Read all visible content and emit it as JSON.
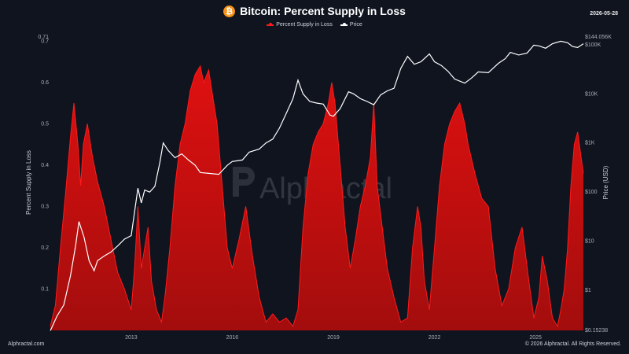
{
  "header": {
    "title": "Bitcoin: Percent Supply in Loss",
    "date": "2026-05-28",
    "btc_symbol": "₿"
  },
  "legend": [
    {
      "label": "Percent Supply in Loss",
      "color": "#ff1a1a"
    },
    {
      "label": "Price",
      "color": "#ffffff"
    }
  ],
  "watermark": "Alphractal",
  "footer": {
    "left": "Alphractal.com",
    "right": "© 2026 Alphractal. All Rights Reserved."
  },
  "chart_data": {
    "type": "area",
    "ylabel": "Percent Supply in Loss",
    "y2label": "Price (USD)",
    "ylim": [
      0,
      0.71
    ],
    "y_ticks": [
      "0.1",
      "0.2",
      "0.3",
      "0.4",
      "0.5",
      "0.6",
      "0.7",
      "0.71"
    ],
    "y_tick_values": [
      0.1,
      0.2,
      0.3,
      0.4,
      0.5,
      0.6,
      0.7,
      0.71
    ],
    "y2_scale": "log",
    "y2lim": [
      0.15238,
      144056
    ],
    "y2_ticks": [
      "$0.15238",
      "$1",
      "$10",
      "$100",
      "$1K",
      "$10K",
      "$100K",
      "$144.056K"
    ],
    "y2_tick_values": [
      0.15238,
      1,
      10,
      100,
      1000,
      10000,
      100000,
      144056
    ],
    "x_ticks": [
      "2013",
      "2016",
      "2019",
      "2022",
      "2025"
    ],
    "x_tick_values": [
      2013,
      2016,
      2019,
      2022,
      2025
    ],
    "xlim": [
      2010.6,
      2026.42
    ],
    "series": [
      {
        "name": "Percent Supply in Loss",
        "color": "#ff1a1a",
        "x": [
          2010.6,
          2010.75,
          2010.9,
          2011.05,
          2011.2,
          2011.3,
          2011.42,
          2011.5,
          2011.58,
          2011.7,
          2011.85,
          2012.0,
          2012.2,
          2012.4,
          2012.6,
          2012.8,
          2013.0,
          2013.1,
          2013.2,
          2013.3,
          2013.4,
          2013.5,
          2013.6,
          2013.75,
          2013.9,
          2014.0,
          2014.15,
          2014.3,
          2014.45,
          2014.6,
          2014.75,
          2014.9,
          2015.05,
          2015.15,
          2015.3,
          2015.45,
          2015.55,
          2015.7,
          2015.85,
          2016.0,
          2016.2,
          2016.4,
          2016.6,
          2016.8,
          2017.0,
          2017.2,
          2017.4,
          2017.6,
          2017.8,
          2017.95,
          2018.1,
          2018.25,
          2018.4,
          2018.55,
          2018.7,
          2018.85,
          2018.95,
          2019.05,
          2019.2,
          2019.35,
          2019.5,
          2019.65,
          2019.8,
          2019.95,
          2020.1,
          2020.2,
          2020.3,
          2020.45,
          2020.6,
          2020.8,
          2021.0,
          2021.2,
          2021.35,
          2021.5,
          2021.6,
          2021.7,
          2021.85,
          2022.0,
          2022.15,
          2022.3,
          2022.45,
          2022.6,
          2022.75,
          2022.9,
          2023.0,
          2023.2,
          2023.4,
          2023.6,
          2023.8,
          2024.0,
          2024.2,
          2024.4,
          2024.6,
          2024.8,
          2024.95,
          2025.1,
          2025.2,
          2025.35,
          2025.5,
          2025.65,
          2025.75,
          2025.85,
          2025.95,
          2026.05,
          2026.15,
          2026.25,
          2026.35,
          2026.42
        ],
        "values": [
          0.01,
          0.06,
          0.2,
          0.33,
          0.47,
          0.55,
          0.45,
          0.35,
          0.45,
          0.5,
          0.42,
          0.36,
          0.3,
          0.22,
          0.14,
          0.1,
          0.05,
          0.15,
          0.3,
          0.15,
          0.2,
          0.25,
          0.12,
          0.05,
          0.02,
          0.08,
          0.2,
          0.35,
          0.45,
          0.5,
          0.58,
          0.62,
          0.64,
          0.6,
          0.63,
          0.55,
          0.5,
          0.35,
          0.2,
          0.15,
          0.22,
          0.3,
          0.18,
          0.08,
          0.02,
          0.04,
          0.02,
          0.03,
          0.01,
          0.05,
          0.25,
          0.38,
          0.45,
          0.48,
          0.5,
          0.55,
          0.6,
          0.55,
          0.4,
          0.25,
          0.15,
          0.22,
          0.3,
          0.35,
          0.42,
          0.55,
          0.35,
          0.25,
          0.15,
          0.08,
          0.02,
          0.03,
          0.2,
          0.3,
          0.25,
          0.12,
          0.05,
          0.2,
          0.35,
          0.45,
          0.5,
          0.53,
          0.55,
          0.5,
          0.45,
          0.38,
          0.32,
          0.3,
          0.15,
          0.06,
          0.1,
          0.2,
          0.25,
          0.12,
          0.03,
          0.08,
          0.18,
          0.12,
          0.03,
          0.01,
          0.05,
          0.1,
          0.2,
          0.35,
          0.45,
          0.48,
          0.42,
          0.38
        ]
      },
      {
        "name": "Price",
        "color": "#ffffff",
        "x": [
          2010.6,
          2010.8,
          2011.0,
          2011.2,
          2011.35,
          2011.45,
          2011.6,
          2011.75,
          2011.9,
          2012.0,
          2012.2,
          2012.4,
          2012.6,
          2012.8,
          2013.0,
          2013.2,
          2013.3,
          2013.4,
          2013.55,
          2013.7,
          2013.85,
          2013.95,
          2014.1,
          2014.3,
          2014.5,
          2014.7,
          2014.9,
          2015.05,
          2015.3,
          2015.6,
          2015.85,
          2016.0,
          2016.3,
          2016.5,
          2016.8,
          2017.0,
          2017.2,
          2017.4,
          2017.6,
          2017.8,
          2017.95,
          2018.1,
          2018.3,
          2018.5,
          2018.7,
          2018.9,
          2019.0,
          2019.2,
          2019.45,
          2019.6,
          2019.8,
          2020.0,
          2020.2,
          2020.4,
          2020.6,
          2020.8,
          2021.0,
          2021.2,
          2021.4,
          2021.6,
          2021.85,
          2022.0,
          2022.2,
          2022.4,
          2022.6,
          2022.9,
          2023.1,
          2023.3,
          2023.6,
          2023.9,
          2024.1,
          2024.25,
          2024.5,
          2024.75,
          2024.95,
          2025.1,
          2025.3,
          2025.5,
          2025.75,
          2025.95,
          2026.1,
          2026.25,
          2026.42
        ],
        "values": [
          0.15,
          0.3,
          0.5,
          2,
          8,
          25,
          12,
          4,
          2.5,
          4,
          5,
          6,
          8,
          11,
          13,
          120,
          60,
          110,
          100,
          130,
          400,
          1000,
          700,
          500,
          600,
          450,
          350,
          250,
          240,
          230,
          350,
          420,
          450,
          650,
          750,
          1000,
          1200,
          2000,
          4000,
          8000,
          19000,
          10000,
          7000,
          6500,
          6200,
          3700,
          3500,
          5000,
          11000,
          10000,
          8000,
          7000,
          6000,
          9500,
          11500,
          13000,
          33000,
          58000,
          40000,
          45000,
          65000,
          45000,
          38000,
          29000,
          20000,
          16500,
          21000,
          28000,
          27000,
          42000,
          52000,
          70000,
          62000,
          68000,
          98000,
          95000,
          85000,
          105000,
          118000,
          110000,
          92000,
          88000,
          105000
        ]
      }
    ],
    "grid": false,
    "legend_position": "top-center"
  }
}
